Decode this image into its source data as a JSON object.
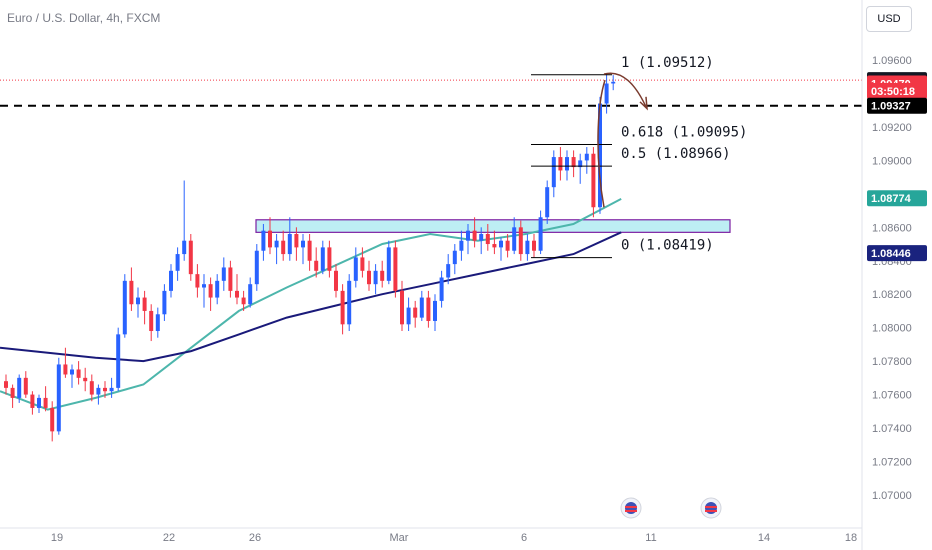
{
  "header": {
    "symbol": "Euro / U.S. Dollar, 4h, FXCM",
    "currency_button": "USD"
  },
  "colors": {
    "up": "#2962ff",
    "down": "#f23645",
    "ma_fast": "#4db6ac",
    "ma_slow": "#1a1a7a",
    "zone_fill": "#b2ebf2",
    "zone_border": "#7b1fa2",
    "axis_text": "#787b86"
  },
  "chart_data": {
    "type": "candlestick",
    "ylim": [
      1.0685,
      1.0972
    ],
    "y_ticks": [
      "1.09600",
      "1.09400",
      "1.09200",
      "1.09000",
      "1.08800",
      "1.08600",
      "1.08400",
      "1.08200",
      "1.08000",
      "1.07800",
      "1.07600",
      "1.07400",
      "1.07200",
      "1.07000"
    ],
    "x_ticks": [
      "19",
      "22",
      "26",
      "Mar",
      "6",
      "11",
      "14",
      "18"
    ],
    "price_labels": [
      {
        "text": "1.09480",
        "price": 1.0948,
        "style": "dark"
      },
      {
        "text": "1.09470",
        "price": 1.0946,
        "style": "red"
      },
      {
        "text": "03:50:18",
        "price": 1.09415,
        "style": "red"
      },
      {
        "text": "1.09327",
        "price": 1.09327,
        "style": "black"
      },
      {
        "text": "1.08774",
        "price": 1.08774,
        "style": "teal"
      },
      {
        "text": "1.08446",
        "price": 1.08446,
        "style": "navy"
      }
    ],
    "fibonacci": [
      {
        "label": "1 (1.09512)",
        "price": 1.09512
      },
      {
        "label": "0.618 (1.09095)",
        "price": 1.09095
      },
      {
        "label": "0.5 (1.08966)",
        "price": 1.08966
      },
      {
        "label": "0 (1.08419)",
        "price": 1.08419
      }
    ],
    "zone": {
      "from": 1.0857,
      "to": 1.08645
    },
    "dashed_level": 1.09327,
    "dotted_level": 1.0948,
    "candles": [
      [
        1.0768,
        1.0772,
        1.076,
        1.0764
      ],
      [
        1.0764,
        1.0766,
        1.0752,
        1.0758
      ],
      [
        1.0758,
        1.0772,
        1.0755,
        1.077
      ],
      [
        1.077,
        1.0774,
        1.0758,
        1.076
      ],
      [
        1.076,
        1.0762,
        1.0748,
        1.0752
      ],
      [
        1.0752,
        1.076,
        1.0749,
        1.0758
      ],
      [
        1.0758,
        1.0765,
        1.075,
        1.0752
      ],
      [
        1.0752,
        1.0756,
        1.0732,
        1.0738
      ],
      [
        1.0738,
        1.0782,
        1.0736,
        1.0778
      ],
      [
        1.0778,
        1.0788,
        1.077,
        1.0772
      ],
      [
        1.0772,
        1.0778,
        1.0764,
        1.0775
      ],
      [
        1.0775,
        1.078,
        1.0766,
        1.077
      ],
      [
        1.077,
        1.0776,
        1.0762,
        1.0768
      ],
      [
        1.0768,
        1.0772,
        1.0756,
        1.076
      ],
      [
        1.076,
        1.0766,
        1.0754,
        1.0764
      ],
      [
        1.0764,
        1.0768,
        1.0758,
        1.0762
      ],
      [
        1.0762,
        1.077,
        1.0758,
        1.0764
      ],
      [
        1.0764,
        1.08,
        1.0762,
        1.0796
      ],
      [
        1.0796,
        1.0832,
        1.0794,
        1.0828
      ],
      [
        1.0828,
        1.0836,
        1.081,
        1.0814
      ],
      [
        1.0814,
        1.0824,
        1.0806,
        1.0818
      ],
      [
        1.0818,
        1.0822,
        1.0802,
        1.081
      ],
      [
        1.081,
        1.0814,
        1.0792,
        1.0798
      ],
      [
        1.0798,
        1.0812,
        1.0794,
        1.0808
      ],
      [
        1.0808,
        1.0826,
        1.0804,
        1.0822
      ],
      [
        1.0822,
        1.0838,
        1.0818,
        1.0834
      ],
      [
        1.0834,
        1.0848,
        1.0828,
        1.0844
      ],
      [
        1.0844,
        1.0888,
        1.084,
        1.0852
      ],
      [
        1.0852,
        1.0856,
        1.0828,
        1.0832
      ],
      [
        1.0832,
        1.0838,
        1.0818,
        1.0824
      ],
      [
        1.0824,
        1.0832,
        1.0812,
        1.0826
      ],
      [
        1.0826,
        1.083,
        1.081,
        1.0818
      ],
      [
        1.0818,
        1.0832,
        1.0814,
        1.0828
      ],
      [
        1.0828,
        1.0842,
        1.0822,
        1.0836
      ],
      [
        1.0836,
        1.084,
        1.0818,
        1.0822
      ],
      [
        1.0822,
        1.0832,
        1.0814,
        1.0818
      ],
      [
        1.0818,
        1.0822,
        1.081,
        1.0814
      ],
      [
        1.0814,
        1.083,
        1.0812,
        1.0826
      ],
      [
        1.0826,
        1.085,
        1.0822,
        1.0846
      ],
      [
        1.0846,
        1.0862,
        1.084,
        1.0858
      ],
      [
        1.0858,
        1.0866,
        1.0844,
        1.0848
      ],
      [
        1.0848,
        1.0856,
        1.0838,
        1.0852
      ],
      [
        1.0852,
        1.0858,
        1.084,
        1.0844
      ],
      [
        1.0844,
        1.0866,
        1.084,
        1.0856
      ],
      [
        1.0856,
        1.086,
        1.084,
        1.0848
      ],
      [
        1.0848,
        1.0856,
        1.0838,
        1.0852
      ],
      [
        1.0852,
        1.0856,
        1.0834,
        1.084
      ],
      [
        1.084,
        1.0848,
        1.083,
        1.0834
      ],
      [
        1.0834,
        1.0852,
        1.0832,
        1.0848
      ],
      [
        1.0848,
        1.0852,
        1.083,
        1.0834
      ],
      [
        1.0834,
        1.0838,
        1.0818,
        1.0822
      ],
      [
        1.0822,
        1.0826,
        1.0796,
        1.0802
      ],
      [
        1.0802,
        1.0832,
        1.0798,
        1.0828
      ],
      [
        1.0828,
        1.0848,
        1.0824,
        1.0842
      ],
      [
        1.0842,
        1.0848,
        1.083,
        1.0834
      ],
      [
        1.0834,
        1.084,
        1.0822,
        1.0826
      ],
      [
        1.0826,
        1.0838,
        1.082,
        1.0834
      ],
      [
        1.0834,
        1.084,
        1.0824,
        1.0828
      ],
      [
        1.0828,
        1.0852,
        1.0826,
        1.0848
      ],
      [
        1.0848,
        1.0852,
        1.0818,
        1.0822
      ],
      [
        1.0822,
        1.0828,
        1.0798,
        1.0802
      ],
      [
        1.0802,
        1.0818,
        1.0798,
        1.0812
      ],
      [
        1.0812,
        1.0816,
        1.08,
        1.0806
      ],
      [
        1.0806,
        1.0822,
        1.0804,
        1.0818
      ],
      [
        1.0818,
        1.0822,
        1.08,
        1.0804
      ],
      [
        1.0804,
        1.082,
        1.0798,
        1.0816
      ],
      [
        1.0816,
        1.0834,
        1.0812,
        1.083
      ],
      [
        1.083,
        1.0844,
        1.0826,
        1.0838
      ],
      [
        1.0838,
        1.085,
        1.0832,
        1.0846
      ],
      [
        1.0846,
        1.0858,
        1.084,
        1.0852
      ],
      [
        1.0852,
        1.0862,
        1.0844,
        1.0858
      ],
      [
        1.0858,
        1.0866,
        1.0848,
        1.0852
      ],
      [
        1.0852,
        1.086,
        1.0844,
        1.0856
      ],
      [
        1.0856,
        1.0862,
        1.0846,
        1.085
      ],
      [
        1.085,
        1.0858,
        1.0844,
        1.0848
      ],
      [
        1.0848,
        1.0854,
        1.084,
        1.0852
      ],
      [
        1.0852,
        1.0856,
        1.0842,
        1.0846
      ],
      [
        1.0846,
        1.0866,
        1.0844,
        1.086
      ],
      [
        1.086,
        1.0864,
        1.084,
        1.0844
      ],
      [
        1.0844,
        1.0856,
        1.084,
        1.0852
      ],
      [
        1.0852,
        1.0856,
        1.0842,
        1.0846
      ],
      [
        1.0846,
        1.087,
        1.0844,
        1.0866
      ],
      [
        1.0866,
        1.0888,
        1.0862,
        1.0884
      ],
      [
        1.0884,
        1.0906,
        1.0878,
        1.0902
      ],
      [
        1.0902,
        1.0908,
        1.0888,
        1.0894
      ],
      [
        1.0894,
        1.0906,
        1.0888,
        1.0902
      ],
      [
        1.0902,
        1.0906,
        1.089,
        1.0896
      ],
      [
        1.0896,
        1.0904,
        1.0886,
        1.09
      ],
      [
        1.09,
        1.0908,
        1.0892,
        1.0904
      ],
      [
        1.0904,
        1.0908,
        1.0866,
        1.0872
      ],
      [
        1.0872,
        1.0938,
        1.0868,
        1.0934
      ],
      [
        1.0934,
        1.0952,
        1.0928,
        1.0946
      ],
      [
        1.0946,
        1.0951,
        1.0942,
        1.0947
      ]
    ],
    "ma_fast": [
      [
        1.0762,
        1.0751,
        1.0758,
        1.0766,
        1.0788,
        1.081,
        1.0824,
        1.0837,
        1.085,
        1.0856,
        1.0852,
        1.0856,
        1.0862,
        1.0877
      ],
      "fast"
    ],
    "ma_slow": [
      [
        1.0788,
        1.0785,
        1.0782,
        1.078,
        1.0786,
        1.0796,
        1.0806,
        1.0813,
        1.082,
        1.0826,
        1.0832,
        1.0838,
        1.0844,
        1.0857
      ],
      "slow"
    ],
    "events": [
      "us-flag-icon",
      "us-flag-icon"
    ]
  }
}
